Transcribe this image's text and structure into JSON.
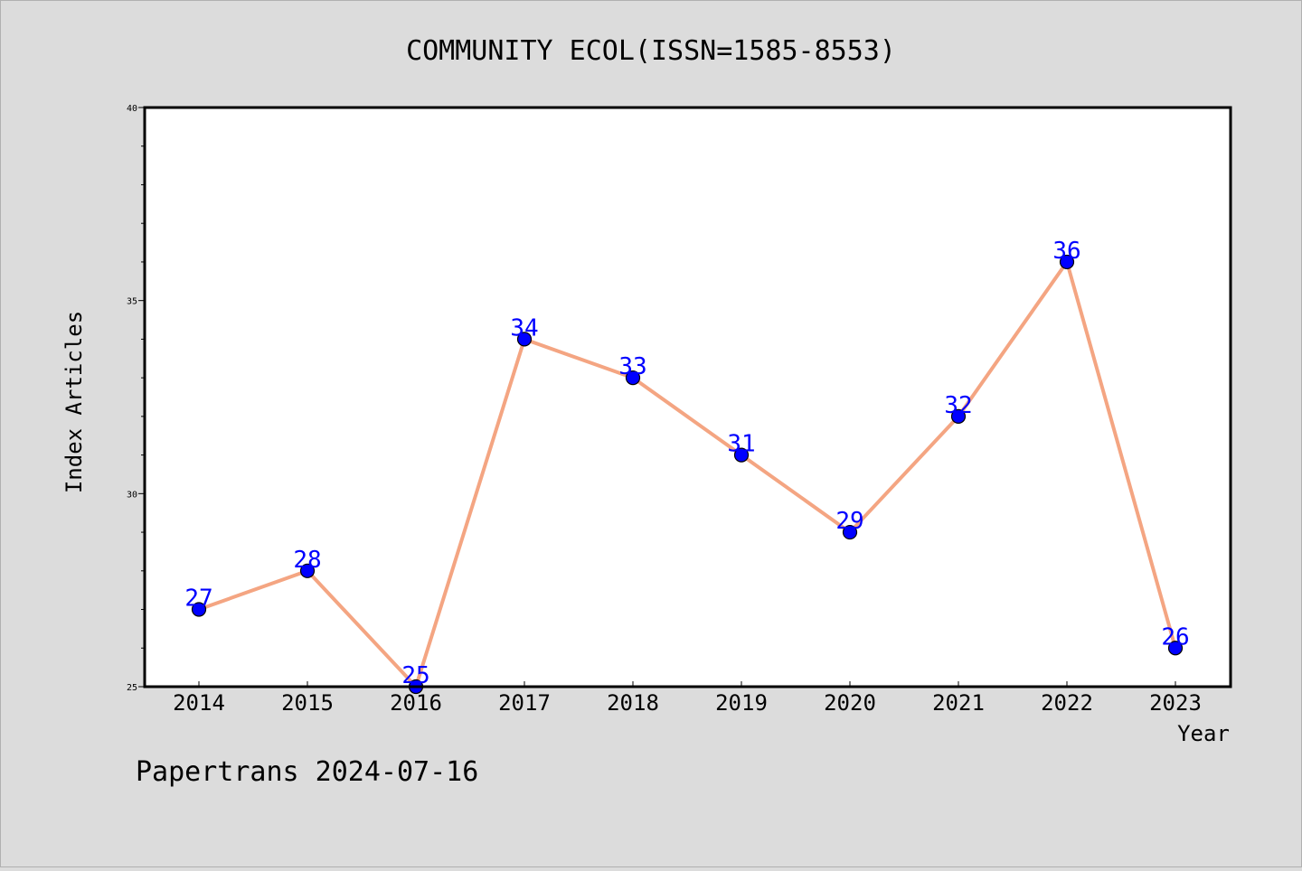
{
  "chart_data": {
    "type": "line",
    "title": "COMMUNITY ECOL(ISSN=1585-8553)",
    "xlabel": "Year",
    "ylabel": "Index Articles",
    "categories": [
      "2014",
      "2015",
      "2016",
      "2017",
      "2018",
      "2019",
      "2020",
      "2021",
      "2022",
      "2023"
    ],
    "series": [
      {
        "values": [
          27,
          28,
          25,
          34,
          33,
          31,
          29,
          32,
          36,
          26
        ]
      }
    ],
    "ylim": [
      25,
      40
    ],
    "y_ticks": [
      25,
      30,
      35,
      40
    ],
    "grid": false,
    "data_labels": true,
    "colors": {
      "line": "#f4a582",
      "marker": "#0000ff",
      "label": "#0000ff",
      "background": "#dcdcdc",
      "plot_bg": "#ffffff"
    }
  },
  "footer": {
    "text": "Papertrans 2024-07-16"
  }
}
